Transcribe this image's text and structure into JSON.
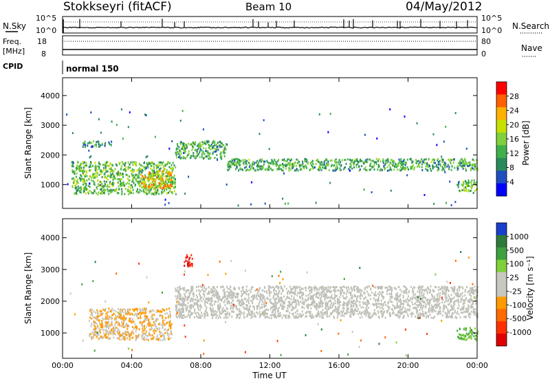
{
  "header": {
    "station": "Stokkseyri (fitACF)",
    "beam": "Beam 10",
    "date": "04/May/2012"
  },
  "strip_labels": {
    "nsky": "N.Sky",
    "nsearch": "N.Search",
    "freq_line1": "Freq.",
    "freq_line2": "[MHz]",
    "nave": "Nave",
    "cpid": "CPID",
    "cpid_value": "normal 150",
    "nsky_ticks": [
      "10^5",
      "10^0"
    ],
    "nsearch_ticks": [
      "10^5",
      "10^0"
    ],
    "freq_ticks": [
      "18",
      "8"
    ],
    "nave_ticks": [
      "80",
      "0"
    ]
  },
  "colors": {
    "power_scale": [
      "#0000ff",
      "#1f4fbf",
      "#2a8a5a",
      "#3fb04a",
      "#7fd03a",
      "#c8e000",
      "#ffb000",
      "#ff6000",
      "#ff0000"
    ],
    "velocity_scale": [
      "#1a3fcc",
      "#2f7a3a",
      "#3fa040",
      "#7fd03a",
      "#c8c8c0",
      "#c8c8c0",
      "#ff9a00",
      "#ff6a00",
      "#ff3000",
      "#e00000"
    ],
    "ground_scatter": "#c0c0b8"
  },
  "chart_data": [
    {
      "type": "heatmap",
      "name": "power-panel",
      "xlabel": "",
      "ylabel": "Slant Range [km]",
      "xlim": [
        0,
        24
      ],
      "ylim": [
        200,
        4600
      ],
      "yticks": [
        1000,
        2000,
        3000,
        4000
      ],
      "colorbar": {
        "label": "Power [dB]",
        "ticks": [
          "28",
          "24",
          "20",
          "16",
          "12",
          "8",
          "4"
        ],
        "range": [
          0,
          32
        ]
      },
      "features": [
        {
          "t0": 0.5,
          "t1": 6.5,
          "r0": 700,
          "r1": 1800,
          "value": 14
        },
        {
          "t0": 4.5,
          "t1": 6.3,
          "r0": 900,
          "r1": 1500,
          "value": 22
        },
        {
          "t0": 6.5,
          "t1": 9.5,
          "r0": 1900,
          "r1": 2500,
          "value": 12
        },
        {
          "t0": 9.5,
          "t1": 24,
          "r0": 1500,
          "r1": 1900,
          "value": 12
        },
        {
          "t0": 1.1,
          "t1": 2.8,
          "r0": 2300,
          "r1": 2500,
          "value": 10
        },
        {
          "t0": 22.8,
          "t1": 24,
          "r0": 800,
          "r1": 1200,
          "value": 14
        }
      ]
    },
    {
      "type": "heatmap",
      "name": "velocity-panel",
      "xlabel": "Time UT",
      "ylabel": "Slant Range [km]",
      "xlim": [
        0,
        24
      ],
      "ylim": [
        200,
        4600
      ],
      "xticks": [
        "00:00",
        "04:00",
        "08:00",
        "12:00",
        "16:00",
        "20:00",
        "00:00"
      ],
      "yticks": [
        1000,
        2000,
        3000,
        4000
      ],
      "colorbar": {
        "label": "Velocity [m s⁻¹]",
        "ticks": [
          "1000",
          "500",
          "100",
          "25",
          "-25",
          "-100",
          "-500",
          "-1000"
        ],
        "range": [
          -1000,
          1000
        ]
      },
      "features": [
        {
          "t0": 1.5,
          "t1": 6.3,
          "r0": 800,
          "r1": 1800,
          "value": -200
        },
        {
          "t0": 6.5,
          "t1": 24,
          "r0": 1500,
          "r1": 2500,
          "value": 0
        },
        {
          "t0": 7.0,
          "t1": 7.5,
          "r0": 3100,
          "r1": 3500,
          "value": -800
        },
        {
          "t0": 22.8,
          "t1": 24,
          "r0": 800,
          "r1": 1200,
          "value": 400
        }
      ]
    }
  ]
}
